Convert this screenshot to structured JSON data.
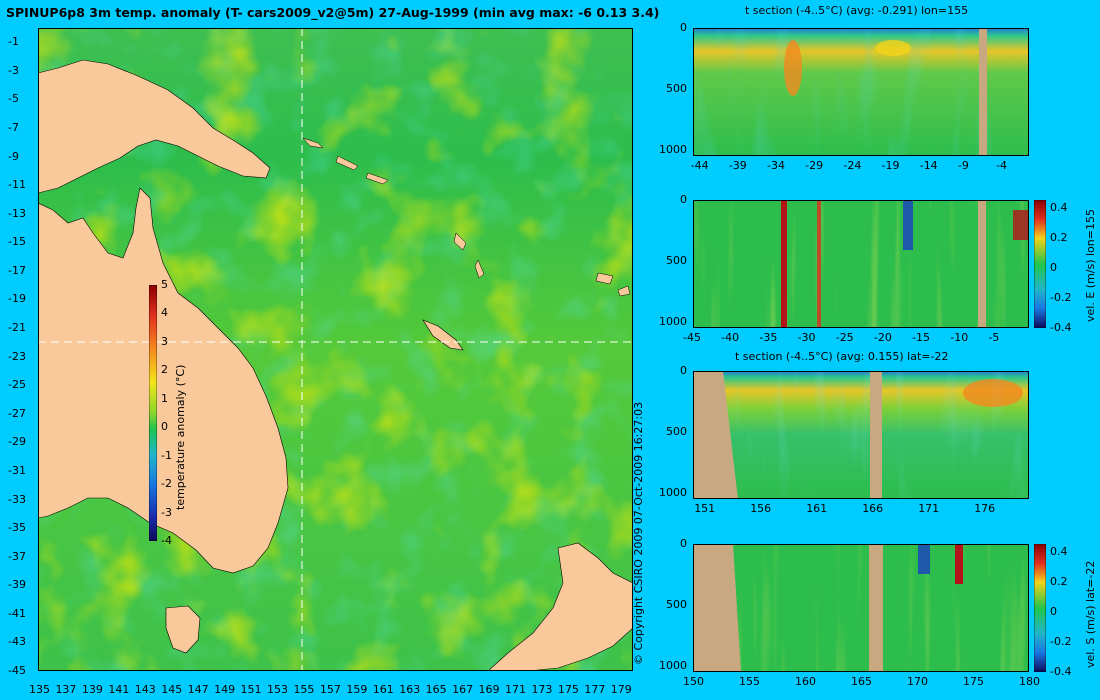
{
  "header": {
    "title": "SPINUP6p8 3m temp. anomaly (T- cars2009_v2@5m) 27-Aug-1999 (min avg max: -6 0.13 3.4)"
  },
  "copyright": "© Copyright CSIRO 2009   07-Oct-2009 16:27:03",
  "colors": {
    "background": "#00ccff",
    "land": "#f9c99b",
    "section_land": "#c8a881",
    "ocean_mid": "#22c44b"
  },
  "chart_data": [
    {
      "type": "heatmap",
      "name": "map",
      "title": "SPINUP6p8 3m temp. anomaly (T- cars2009_v2@5m) 27-Aug-1999 (min avg max: -6 0.13 3.4)",
      "x_ticks": [
        "135",
        "137",
        "139",
        "141",
        "143",
        "145",
        "147",
        "149",
        "151",
        "153",
        "155",
        "157",
        "159",
        "161",
        "163",
        "165",
        "167",
        "169",
        "171",
        "173",
        "175",
        "177",
        "179"
      ],
      "y_ticks": [
        "-1",
        "-3",
        "-5",
        "-7",
        "-9",
        "-11",
        "-13",
        "-15",
        "-17",
        "-19",
        "-21",
        "-23",
        "-25",
        "-27",
        "-29",
        "-31",
        "-33",
        "-35",
        "-37",
        "-39",
        "-41",
        "-43",
        "-45"
      ],
      "xlim": [
        135,
        180
      ],
      "ylim": [
        -45,
        0
      ],
      "colorbar": {
        "label": "temperature anomaly (°C)",
        "ticks": [
          "5",
          "4",
          "3",
          "2",
          "1",
          "0",
          "-1",
          "-2",
          "-3",
          "-4"
        ],
        "range": [
          -4,
          5
        ]
      },
      "section_lines": {
        "lon": 155,
        "lat": -22
      }
    },
    {
      "type": "heatmap",
      "name": "panel1",
      "title": "t section (-4..5°C) (avg: -0.291) lon=155",
      "x_ticks": [
        "-44",
        "-39",
        "-34",
        "-29",
        "-24",
        "-19",
        "-14",
        "-9",
        "-4"
      ],
      "y_ticks": [
        "0",
        "500",
        "1000"
      ],
      "xlim": [
        -45,
        -1
      ],
      "ylim": [
        1050,
        0
      ]
    },
    {
      "type": "heatmap",
      "name": "panel2",
      "title": "",
      "x_ticks": [
        "-45",
        "-40",
        "-35",
        "-30",
        "-25",
        "-20",
        "-15",
        "-10",
        "-5"
      ],
      "y_ticks": [
        "0",
        "500",
        "1000"
      ],
      "xlim": [
        -45,
        -1
      ],
      "ylim": [
        1050,
        0
      ],
      "colorbar": {
        "label": "vel. E (m/s) lon=155",
        "ticks": [
          "0.4",
          "0.2",
          "0",
          "-0.2",
          "-0.4"
        ],
        "range": [
          -0.4,
          0.45
        ]
      }
    },
    {
      "type": "heatmap",
      "name": "panel3",
      "title": "t section (-4..5°C) (avg: 0.155) lat=-22",
      "x_ticks": [
        "151",
        "156",
        "161",
        "166",
        "171",
        "176"
      ],
      "y_ticks": [
        "0",
        "500",
        "1000"
      ],
      "xlim": [
        150,
        180
      ],
      "ylim": [
        1050,
        0
      ]
    },
    {
      "type": "heatmap",
      "name": "panel4",
      "title": "",
      "x_ticks": [
        "150",
        "155",
        "160",
        "165",
        "170",
        "175",
        "180"
      ],
      "y_ticks": [
        "0",
        "500",
        "1000"
      ],
      "xlim": [
        150,
        180
      ],
      "ylim": [
        1050,
        0
      ],
      "colorbar": {
        "label": "vel. S (m/s) lat=-22",
        "ticks": [
          "0.4",
          "0.2",
          "0",
          "-0.2",
          "-0.4"
        ],
        "range": [
          -0.4,
          0.45
        ]
      }
    }
  ]
}
